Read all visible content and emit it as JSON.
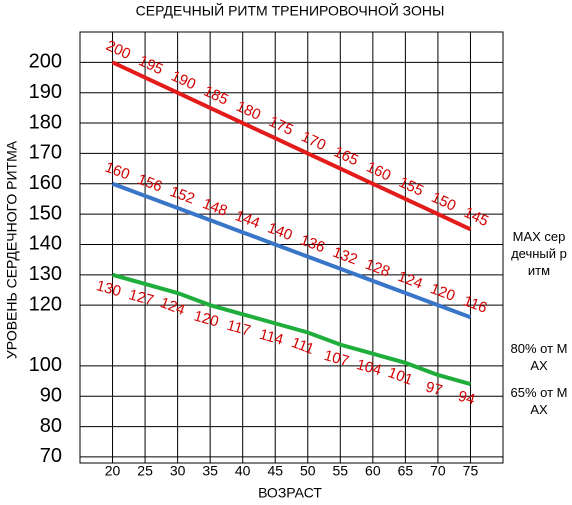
{
  "chart_data": {
    "type": "line",
    "title": "СЕРДЕЧНЫЙ РИТМ ТРЕНИРОВОЧНОЙ ЗОНЫ",
    "x_label": "ВОЗРАСТ",
    "y_label": "УРОВЕНЬ СЕРДЕЧНОГО РИТМА",
    "x": [
      20,
      25,
      30,
      35,
      40,
      45,
      50,
      55,
      60,
      65,
      70,
      75
    ],
    "xlim": [
      15,
      80
    ],
    "xticks": [
      20,
      25,
      30,
      35,
      40,
      45,
      50,
      55,
      60,
      65,
      70,
      75
    ],
    "ylim": [
      68,
      210
    ],
    "yticks": [
      200,
      190,
      180,
      170,
      160,
      150,
      140,
      130,
      120,
      100,
      90,
      80,
      70
    ],
    "grid": true,
    "series": [
      {
        "name": "MAX сердечный ритм",
        "color": "#e31b1b",
        "label_color": "#d40000",
        "values": [
          200,
          195,
          190,
          185,
          180,
          175,
          170,
          165,
          160,
          155,
          150,
          145
        ]
      },
      {
        "name": "80% от MAX",
        "color": "#3a76c8",
        "label_color": "#d40000",
        "values": [
          160,
          156,
          152,
          148,
          144,
          140,
          136,
          132,
          128,
          124,
          120,
          116
        ]
      },
      {
        "name": "65% от MAX",
        "color": "#1fad3c",
        "label_color": "#d40000",
        "values": [
          130,
          127,
          124,
          120,
          117,
          114,
          111,
          107,
          104,
          101,
          97,
          94
        ]
      }
    ]
  }
}
